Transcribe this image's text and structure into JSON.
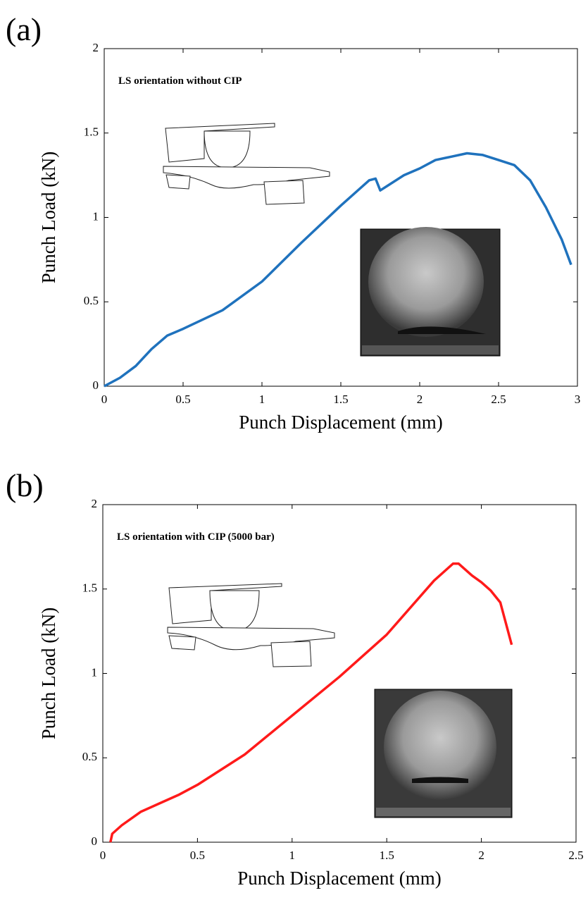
{
  "chart_data": [
    {
      "type": "line",
      "panel_label": "(a)",
      "annotation": "LS orientation without CIP",
      "xlabel": "Punch Displacement (mm)",
      "ylabel": "Punch Load (kN)",
      "color": "#1f72bd",
      "x": [
        0,
        0.1,
        0.2,
        0.3,
        0.4,
        0.5,
        0.75,
        1.0,
        1.25,
        1.5,
        1.68,
        1.72,
        1.75,
        1.8,
        1.9,
        2.0,
        2.1,
        2.2,
        2.3,
        2.4,
        2.5,
        2.6,
        2.7,
        2.8,
        2.9,
        2.96
      ],
      "values": [
        0,
        0.05,
        0.12,
        0.22,
        0.3,
        0.34,
        0.45,
        0.62,
        0.85,
        1.07,
        1.22,
        1.23,
        1.16,
        1.19,
        1.25,
        1.29,
        1.34,
        1.36,
        1.38,
        1.37,
        1.34,
        1.31,
        1.22,
        1.06,
        0.87,
        0.72
      ],
      "xlim": [
        0,
        3
      ],
      "ylim": [
        0,
        2
      ],
      "xticks": [
        0,
        0.5,
        1,
        1.5,
        2,
        2.5,
        3
      ],
      "yticks": [
        0,
        0.5,
        1,
        1.5,
        2
      ]
    },
    {
      "type": "line",
      "panel_label": "(b)",
      "annotation": "LS orientation with CIP (5000 bar)",
      "xlabel": "Punch Displacement (mm)",
      "ylabel": "Punch Load (kN)",
      "color": "#ff1a1a",
      "x": [
        0.04,
        0.05,
        0.1,
        0.2,
        0.3,
        0.4,
        0.5,
        0.75,
        1.0,
        1.25,
        1.5,
        1.75,
        1.85,
        1.88,
        1.95,
        2.0,
        2.05,
        2.1,
        2.16
      ],
      "values": [
        0,
        0.05,
        0.1,
        0.18,
        0.23,
        0.28,
        0.34,
        0.52,
        0.75,
        0.98,
        1.23,
        1.55,
        1.65,
        1.65,
        1.58,
        1.54,
        1.49,
        1.42,
        1.17
      ],
      "xlim": [
        0,
        2.5
      ],
      "ylim": [
        0,
        2
      ],
      "xticks": [
        0,
        0.5,
        1,
        1.5,
        2,
        2.5
      ],
      "yticks": [
        0,
        0.5,
        1,
        1.5,
        2
      ]
    }
  ]
}
